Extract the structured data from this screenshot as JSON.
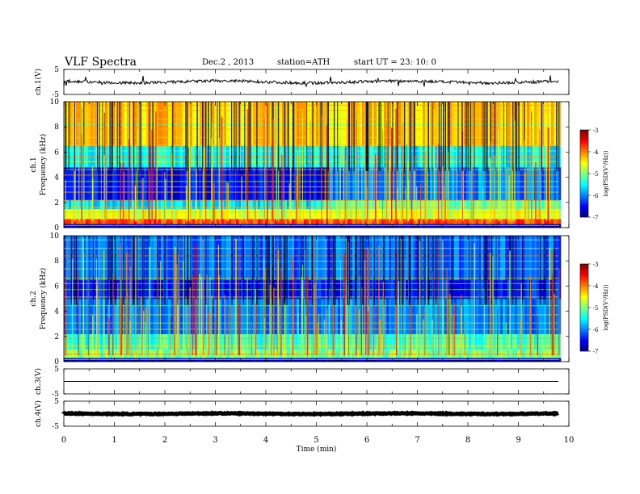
{
  "header": {
    "title": "VLF  Spectra",
    "date": "Dec.2  , 2013",
    "station": "station=ATH",
    "start": "start  UT  =   23: 10: 0"
  },
  "chart_data": [
    {
      "type": "line",
      "panel": "ch1-waveform",
      "ylabel": "ch.1(V)",
      "ylim": [
        -5,
        5
      ],
      "yticks": [
        "5",
        "-5"
      ],
      "xlim": [
        0,
        10
      ],
      "trace": {
        "baseline": 0,
        "typical_amplitude": 1,
        "spike_amplitude": 3,
        "end_min": 9.8
      }
    },
    {
      "type": "heatmap",
      "panel": "ch1-spectrogram",
      "ylabel": "ch.1\nFrequency  (kHz)",
      "ylim": [
        0,
        10
      ],
      "yticks": [
        "0",
        "2",
        "4",
        "6",
        "8",
        "10"
      ],
      "xlim": [
        0,
        10
      ],
      "colorbar": {
        "label": "log(PSD(V²/Hz))",
        "range": [
          -7,
          -3
        ],
        "ticks": [
          "-3",
          "-4",
          "-5",
          "-6",
          "-7"
        ]
      },
      "bands_logpsd": [
        {
          "f": [
            0,
            0.3
          ],
          "v": -6.8
        },
        {
          "f": [
            0.3,
            0.7
          ],
          "v": -3.8
        },
        {
          "f": [
            0.7,
            1.5
          ],
          "v": -4.6
        },
        {
          "f": [
            1.5,
            2.2
          ],
          "v": -5.6
        },
        {
          "f": [
            2.2,
            4.8
          ],
          "v": -6.5
        },
        {
          "f": [
            4.8,
            6.5
          ],
          "v": -5.5
        },
        {
          "f": [
            6.5,
            10
          ],
          "v": -4.3
        }
      ],
      "transition_min": 5.2
    },
    {
      "type": "heatmap",
      "panel": "ch2-spectrogram",
      "ylabel": "ch.2\nFrequency  (kHz)",
      "ylim": [
        0,
        10
      ],
      "yticks": [
        "0",
        "2",
        "4",
        "6",
        "8",
        "10"
      ],
      "xlim": [
        0,
        10
      ],
      "colorbar": {
        "label": "log(PSD(V²/Hz))",
        "range": [
          -7,
          -3
        ],
        "ticks": [
          "-3",
          "-4",
          "-5",
          "-6",
          "-7"
        ]
      },
      "bands_logpsd": [
        {
          "f": [
            0,
            0.3
          ],
          "v": -6.8
        },
        {
          "f": [
            0.3,
            1.0
          ],
          "v": -5.0
        },
        {
          "f": [
            1.0,
            2.2
          ],
          "v": -5.3
        },
        {
          "f": [
            2.2,
            5.0
          ],
          "v": -6.0
        },
        {
          "f": [
            5.0,
            6.5
          ],
          "v": -6.4
        },
        {
          "f": [
            6.5,
            10
          ],
          "v": -6.1
        }
      ],
      "transition_min": 5.2
    },
    {
      "type": "line",
      "panel": "ch3-waveform",
      "ylabel": "ch.3(V)",
      "ylim": [
        -5,
        5
      ],
      "yticks": [
        "5",
        "-5"
      ],
      "xlim": [
        0,
        10
      ],
      "trace": {
        "baseline": 0,
        "typical_amplitude": 0,
        "spike_amplitude": 0,
        "end_min": 9.8
      }
    },
    {
      "type": "line",
      "panel": "ch4-waveform",
      "ylabel": "ch.4(V)",
      "ylim": [
        -5,
        5
      ],
      "yticks": [
        "5",
        "-5"
      ],
      "xlim": [
        0,
        10
      ],
      "trace": {
        "baseline": 0,
        "typical_amplitude": 0.3,
        "spike_amplitude": 0,
        "end_min": 9.8
      }
    }
  ],
  "x_axis": {
    "label": "Time  (min)",
    "ticks": [
      "0",
      "1",
      "2",
      "3",
      "4",
      "5",
      "6",
      "7",
      "8",
      "9",
      "10"
    ],
    "range": [
      0,
      10
    ]
  }
}
